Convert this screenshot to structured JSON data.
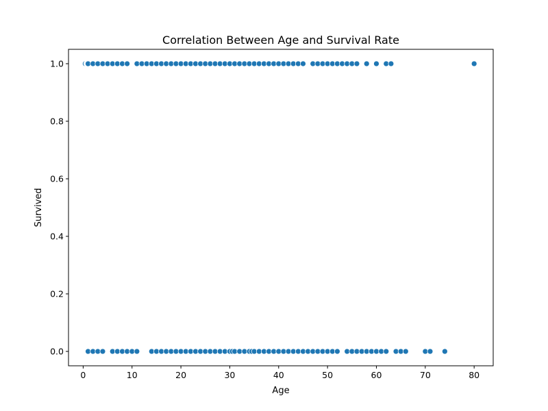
{
  "chart_data": {
    "type": "scatter",
    "title": "Correlation Between Age and Survival Rate",
    "xlabel": "Age",
    "ylabel": "Survived",
    "xlim": [
      -3.0,
      83.9
    ],
    "ylim": [
      -0.05,
      1.05
    ],
    "xticks": [
      0,
      10,
      20,
      30,
      40,
      50,
      60,
      70,
      80
    ],
    "yticks": [
      0.0,
      0.2,
      0.4,
      0.6,
      0.8,
      1.0
    ],
    "ytick_labels": [
      "0.0",
      "0.2",
      "0.4",
      "0.6",
      "0.8",
      "1.0"
    ],
    "grid": false,
    "legend": "none",
    "marker_color": "#1f77b4",
    "series": [
      {
        "values": [
          [
            0.42,
            1
          ],
          [
            0.67,
            1
          ],
          [
            0.75,
            1
          ],
          [
            0.83,
            1
          ],
          [
            0.92,
            1
          ],
          [
            1,
            1
          ],
          [
            2,
            1
          ],
          [
            3,
            1
          ],
          [
            4,
            1
          ],
          [
            5,
            1
          ],
          [
            6,
            1
          ],
          [
            7,
            1
          ],
          [
            8,
            1
          ],
          [
            9,
            1
          ],
          [
            11,
            1
          ],
          [
            12,
            1
          ],
          [
            13,
            1
          ],
          [
            14,
            1
          ],
          [
            15,
            1
          ],
          [
            16,
            1
          ],
          [
            17,
            1
          ],
          [
            18,
            1
          ],
          [
            19,
            1
          ],
          [
            20,
            1
          ],
          [
            21,
            1
          ],
          [
            22,
            1
          ],
          [
            23,
            1
          ],
          [
            24,
            1
          ],
          [
            25,
            1
          ],
          [
            26,
            1
          ],
          [
            27,
            1
          ],
          [
            28,
            1
          ],
          [
            29,
            1
          ],
          [
            30,
            1
          ],
          [
            31,
            1
          ],
          [
            32,
            1
          ],
          [
            33,
            1
          ],
          [
            34,
            1
          ],
          [
            35,
            1
          ],
          [
            36,
            1
          ],
          [
            37,
            1
          ],
          [
            38,
            1
          ],
          [
            39,
            1
          ],
          [
            40,
            1
          ],
          [
            41,
            1
          ],
          [
            42,
            1
          ],
          [
            43,
            1
          ],
          [
            44,
            1
          ],
          [
            45,
            1
          ],
          [
            47,
            1
          ],
          [
            48,
            1
          ],
          [
            49,
            1
          ],
          [
            50,
            1
          ],
          [
            51,
            1
          ],
          [
            52,
            1
          ],
          [
            53,
            1
          ],
          [
            54,
            1
          ],
          [
            55,
            1
          ],
          [
            56,
            1
          ],
          [
            58,
            1
          ],
          [
            60,
            1
          ],
          [
            62,
            1
          ],
          [
            63,
            1
          ],
          [
            80,
            1
          ],
          [
            1,
            0
          ],
          [
            2,
            0
          ],
          [
            3,
            0
          ],
          [
            4,
            0
          ],
          [
            6,
            0
          ],
          [
            7,
            0
          ],
          [
            8,
            0
          ],
          [
            9,
            0
          ],
          [
            10,
            0
          ],
          [
            11,
            0
          ],
          [
            14,
            0
          ],
          [
            15,
            0
          ],
          [
            16,
            0
          ],
          [
            17,
            0
          ],
          [
            18,
            0
          ],
          [
            19,
            0
          ],
          [
            20,
            0
          ],
          [
            21,
            0
          ],
          [
            22,
            0
          ],
          [
            23,
            0
          ],
          [
            24,
            0
          ],
          [
            25,
            0
          ],
          [
            26,
            0
          ],
          [
            27,
            0
          ],
          [
            28,
            0
          ],
          [
            29,
            0
          ],
          [
            30,
            0
          ],
          [
            30.5,
            0
          ],
          [
            31,
            0
          ],
          [
            32,
            0
          ],
          [
            33,
            0
          ],
          [
            34,
            0
          ],
          [
            34.5,
            0
          ],
          [
            35,
            0
          ],
          [
            36,
            0
          ],
          [
            37,
            0
          ],
          [
            38,
            0
          ],
          [
            39,
            0
          ],
          [
            40,
            0
          ],
          [
            41,
            0
          ],
          [
            42,
            0
          ],
          [
            43,
            0
          ],
          [
            44,
            0
          ],
          [
            45,
            0
          ],
          [
            46,
            0
          ],
          [
            47,
            0
          ],
          [
            48,
            0
          ],
          [
            49,
            0
          ],
          [
            50,
            0
          ],
          [
            51,
            0
          ],
          [
            52,
            0
          ],
          [
            54,
            0
          ],
          [
            55,
            0
          ],
          [
            56,
            0
          ],
          [
            57,
            0
          ],
          [
            58,
            0
          ],
          [
            59,
            0
          ],
          [
            60,
            0
          ],
          [
            61,
            0
          ],
          [
            62,
            0
          ],
          [
            64,
            0
          ],
          [
            65,
            0
          ],
          [
            66,
            0
          ],
          [
            70,
            0
          ],
          [
            71,
            0
          ],
          [
            74,
            0
          ]
        ]
      }
    ]
  }
}
